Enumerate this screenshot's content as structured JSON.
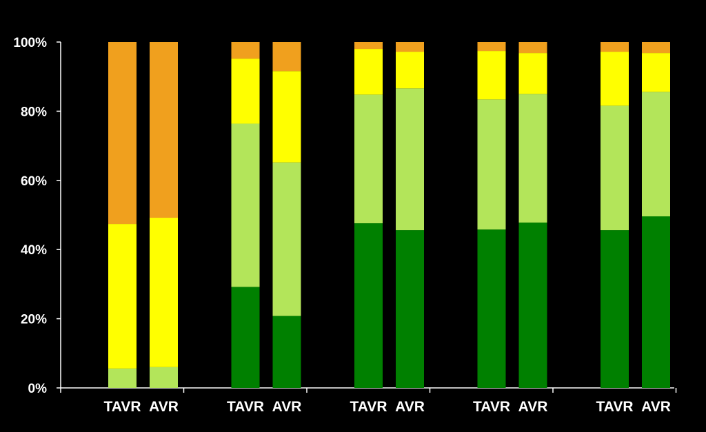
{
  "chart_data": {
    "type": "bar",
    "stacked": true,
    "title": "",
    "xlabel": "",
    "ylabel": "",
    "ylim": [
      0,
      100
    ],
    "y_ticks": [
      "0%",
      "20%",
      "40%",
      "60%",
      "80%",
      "100%"
    ],
    "groups": 5,
    "categories": [
      "TAVR",
      "AVR",
      "TAVR",
      "AVR",
      "TAVR",
      "AVR",
      "TAVR",
      "AVR",
      "TAVR",
      "AVR"
    ],
    "series": [
      {
        "color": "#008000",
        "values": [
          0,
          0,
          29.2,
          20.8,
          47.6,
          45.6,
          45.8,
          47.8,
          45.6,
          49.6
        ]
      },
      {
        "color": "#b3e55a",
        "values": [
          5.6,
          6.0,
          47.2,
          44.4,
          37.2,
          41.0,
          37.6,
          37.2,
          36.0,
          36.0
        ]
      },
      {
        "color": "#ffff00",
        "values": [
          41.8,
          43.2,
          18.8,
          26.4,
          13.2,
          10.6,
          14.0,
          11.8,
          15.6,
          11.2
        ]
      },
      {
        "color": "#f0a01e",
        "values": [
          52.6,
          50.8,
          4.8,
          8.4,
          2.0,
          2.8,
          2.6,
          3.2,
          2.8,
          3.2
        ]
      }
    ],
    "grid": false,
    "legend": "none",
    "colors": {
      "background": "#000000",
      "axis": "#ffffff",
      "text": "#ffffff"
    }
  }
}
